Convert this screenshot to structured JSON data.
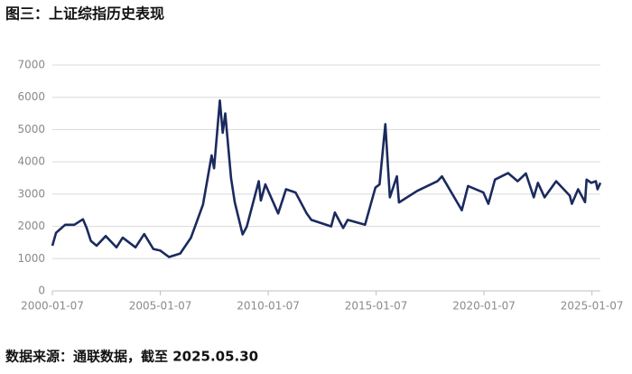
{
  "chart_data": {
    "type": "line",
    "title": "图三：上证综指历史表现",
    "source": "数据来源：通联数据，截至 2025.05.30",
    "x": [
      "2000-01-07",
      "2000-03-10",
      "2000-08-11",
      "2001-01-12",
      "2001-06-08",
      "2001-08-10",
      "2001-10-19",
      "2002-01-25",
      "2002-06-28",
      "2002-12-27",
      "2003-04-11",
      "2003-11-14",
      "2004-04-09",
      "2004-09-10",
      "2005-01-07",
      "2005-06-03",
      "2005-12-09",
      "2006-06-09",
      "2006-12-29",
      "2007-05-25",
      "2007-07-06",
      "2007-10-12",
      "2007-11-30",
      "2008-01-11",
      "2008-04-18",
      "2008-06-20",
      "2008-10-31",
      "2009-01-09",
      "2009-07-31",
      "2009-09-04",
      "2009-11-20",
      "2010-06-25",
      "2010-11-05",
      "2011-04-15",
      "2011-10-21",
      "2012-01-06",
      "2012-12-07",
      "2013-02-08",
      "2013-06-28",
      "2013-09-13",
      "2014-07-04",
      "2014-12-26",
      "2015-03-06",
      "2015-06-12",
      "2015-08-28",
      "2015-12-25",
      "2016-01-29",
      "2016-12-02",
      "2017-11-10",
      "2018-01-26",
      "2018-12-28",
      "2019-04-12",
      "2019-12-27",
      "2020-03-20",
      "2020-07-10",
      "2021-02-19",
      "2021-07-30",
      "2021-12-17",
      "2022-04-29",
      "2022-07-08",
      "2022-10-28",
      "2023-05-12",
      "2023-12-29",
      "2024-02-02",
      "2024-05-17",
      "2024-09-13",
      "2024-10-08",
      "2024-12-27",
      "2025-03-14",
      "2025-04-11",
      "2025-05-30"
    ],
    "series": [
      {
        "name": "上证综指",
        "color": "#1b2a5e",
        "values": [
          1400,
          1800,
          2050,
          2050,
          2220,
          1950,
          1550,
          1400,
          1700,
          1350,
          1650,
          1350,
          1760,
          1300,
          1250,
          1050,
          1160,
          1650,
          2670,
          4200,
          3800,
          5900,
          4900,
          5500,
          3500,
          2750,
          1750,
          1990,
          3400,
          2800,
          3300,
          2400,
          3150,
          3050,
          2400,
          2200,
          2000,
          2430,
          1950,
          2200,
          2050,
          3200,
          3300,
          5170,
          2900,
          3550,
          2740,
          3100,
          3400,
          3550,
          2500,
          3250,
          3050,
          2700,
          3450,
          3650,
          3400,
          3640,
          2900,
          3350,
          2900,
          3400,
          2950,
          2700,
          3150,
          2750,
          3450,
          3350,
          3400,
          3150,
          3350
        ]
      }
    ],
    "xlim": [
      "2000-01-07",
      "2025-05-30"
    ],
    "xticks": [
      "2000-01-07",
      "2005-01-07",
      "2010-01-07",
      "2015-01-07",
      "2020-01-07",
      "2025-01-07"
    ],
    "ylim": [
      0,
      7000
    ],
    "yticks": [
      0,
      1000,
      2000,
      3000,
      4000,
      5000,
      6000,
      7000
    ],
    "grid": true
  }
}
